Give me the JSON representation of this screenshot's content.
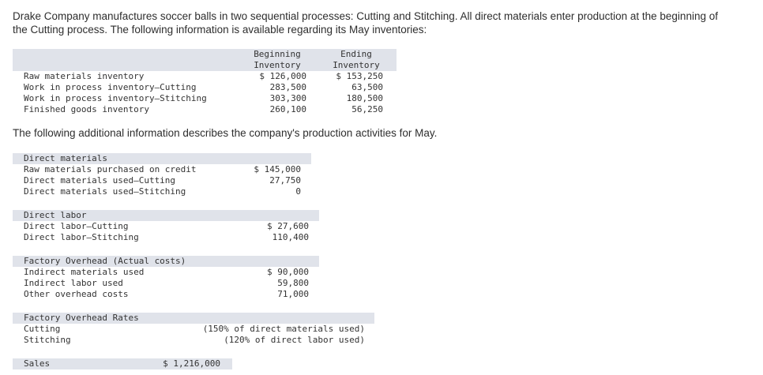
{
  "intro": "Drake Company manufactures soccer balls in two sequential processes: Cutting and Stitching. All direct materials enter production at the beginning of the Cutting process. The following information is available regarding its May inventories:",
  "inventory_table": {
    "col_begin_l1": "Beginning",
    "col_begin_l2": "Inventory",
    "col_end_l1": "Ending",
    "col_end_l2": "Inventory",
    "rows": [
      {
        "label": "Raw materials inventory",
        "begin": "$ 126,000",
        "end": "$ 153,250"
      },
      {
        "label": "Work in process inventory–Cutting",
        "begin": "283,500",
        "end": "63,500"
      },
      {
        "label": "Work in process inventory–Stitching",
        "begin": "303,300",
        "end": "180,500"
      },
      {
        "label": "Finished goods inventory",
        "begin": "260,100",
        "end": "56,250"
      }
    ]
  },
  "additional_info": "The following additional information describes the company's production activities for May.",
  "direct_materials": {
    "header": "Direct materials",
    "rows": [
      {
        "label": "Raw materials purchased on credit",
        "value": "$ 145,000"
      },
      {
        "label": "Direct materials used–Cutting",
        "value": "27,750"
      },
      {
        "label": "Direct materials used–Stitching",
        "value": "0"
      }
    ]
  },
  "direct_labor": {
    "header": "Direct labor",
    "rows": [
      {
        "label": "Direct labor–Cutting",
        "value": "$ 27,600"
      },
      {
        "label": "Direct labor–Stitching",
        "value": "110,400"
      }
    ]
  },
  "factory_overhead": {
    "header": "Factory Overhead (Actual costs)",
    "rows": [
      {
        "label": "Indirect materials used",
        "value": "$ 90,000"
      },
      {
        "label": "Indirect labor used",
        "value": "59,800"
      },
      {
        "label": "Other overhead costs",
        "value": "71,000"
      }
    ]
  },
  "overhead_rates": {
    "header": "Factory Overhead Rates",
    "rows": [
      {
        "label": "Cutting",
        "value": "(150% of direct materials used)"
      },
      {
        "label": "Stitching",
        "value": "(120% of direct labor used)"
      }
    ]
  },
  "sales": {
    "label": "Sales",
    "value": "$ 1,216,000"
  }
}
